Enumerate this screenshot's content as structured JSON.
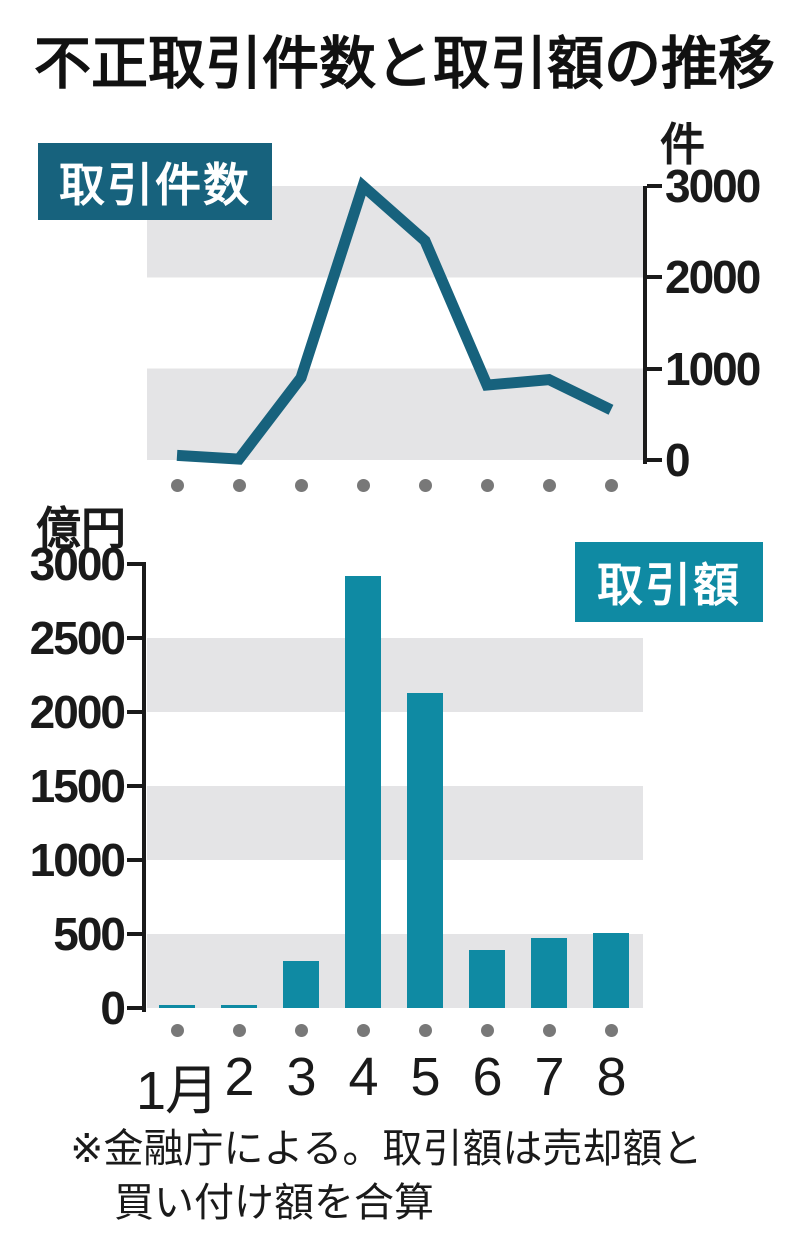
{
  "title": "不正取引件数と取引額の推移",
  "colors": {
    "dark_teal": "#17627d",
    "light_teal": "#0f8aa3",
    "band_gray": "#e4e4e6",
    "dot_gray": "#787878",
    "text": "#1a1a1a"
  },
  "footnote": {
    "line1": "※金融庁による。取引額は売却額と",
    "line2": "買い付け額を合算"
  },
  "chart_data": [
    {
      "type": "line",
      "title": "取引件数",
      "unit": "件",
      "categories": [
        "1月",
        "2",
        "3",
        "4",
        "5",
        "6",
        "7",
        "8"
      ],
      "values": [
        50,
        10,
        900,
        3000,
        2400,
        820,
        880,
        550
      ],
      "yticks": [
        0,
        1000,
        2000,
        3000
      ],
      "ylim": [
        0,
        3000
      ],
      "axis_side": "right",
      "grid": "alternating-bands",
      "line_color": "#17627d",
      "legend_position": "top-left-box"
    },
    {
      "type": "bar",
      "title": "取引額",
      "unit": "億円",
      "categories": [
        "1月",
        "2",
        "3",
        "4",
        "5",
        "6",
        "7",
        "8"
      ],
      "values": [
        20,
        20,
        320,
        2920,
        2130,
        390,
        470,
        510
      ],
      "yticks": [
        0,
        500,
        1000,
        1500,
        2000,
        2500,
        3000
      ],
      "ylim": [
        0,
        3000
      ],
      "axis_side": "left",
      "grid": "alternating-bands",
      "bar_color": "#0f8aa3",
      "legend_position": "top-right-box"
    }
  ]
}
